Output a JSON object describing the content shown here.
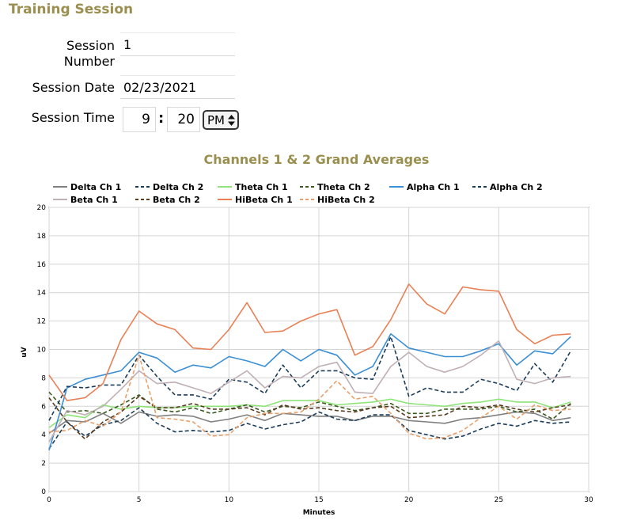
{
  "header": {
    "title": "Training Session"
  },
  "form": {
    "session_number": {
      "label_line1": "Session",
      "label_line2": "Number",
      "value": "1"
    },
    "session_date": {
      "label": "Session Date",
      "value": "02/23/2021"
    },
    "session_time": {
      "label": "Session Time",
      "hour": "9",
      "separator": ":",
      "minute": "20",
      "ampm": "PM"
    }
  },
  "colors": {
    "accent": "#9a8f4e"
  },
  "chart_data": {
    "type": "line",
    "title": "Channels 1 & 2 Grand Averages",
    "xlabel": "Minutes",
    "ylabel": "uV",
    "xlim": [
      0,
      30
    ],
    "ylim": [
      0,
      20
    ],
    "xticks": [
      "0",
      "5",
      "10",
      "15",
      "20",
      "25",
      "30"
    ],
    "yticks": [
      "0",
      "2",
      "4",
      "6",
      "8",
      "10",
      "12",
      "14",
      "16",
      "18",
      "20"
    ],
    "grid": true,
    "legend_position": "top",
    "x": [
      0,
      1,
      2,
      3,
      4,
      5,
      6,
      7,
      8,
      9,
      10,
      11,
      12,
      13,
      14,
      15,
      16,
      17,
      18,
      19,
      20,
      21,
      22,
      23,
      24,
      25,
      26,
      27,
      28,
      29
    ],
    "series": [
      {
        "name": "Delta Ch 1",
        "color": "#808080",
        "dash": false,
        "values": [
          4.1,
          5.0,
          4.9,
          5.5,
          4.8,
          5.6,
          5.3,
          5.4,
          5.3,
          4.9,
          5.1,
          5.4,
          5.0,
          5.5,
          5.4,
          5.3,
          5.3,
          5.0,
          5.3,
          5.3,
          5.0,
          4.9,
          4.8,
          5.1,
          5.2,
          5.4,
          5.6,
          5.5,
          5.0,
          5.2
        ]
      },
      {
        "name": "Delta Ch 2",
        "color": "#1c3d5a",
        "dash": true,
        "values": [
          3.0,
          4.9,
          3.9,
          4.7,
          5.0,
          5.9,
          4.8,
          4.2,
          4.3,
          4.2,
          4.3,
          4.8,
          4.4,
          4.7,
          4.9,
          5.6,
          5.1,
          5.0,
          5.4,
          5.4,
          4.3,
          4.0,
          3.7,
          3.9,
          4.4,
          4.8,
          4.6,
          5.0,
          4.8,
          4.9
        ]
      },
      {
        "name": "Theta Ch 1",
        "color": "#8fe47a",
        "dash": false,
        "values": [
          4.5,
          5.4,
          5.2,
          6.1,
          5.8,
          6.0,
          5.9,
          5.9,
          6.0,
          6.0,
          6.0,
          6.1,
          6.0,
          6.4,
          6.4,
          6.4,
          6.1,
          6.2,
          6.3,
          6.5,
          6.2,
          6.1,
          6.0,
          6.2,
          6.3,
          6.5,
          6.3,
          6.3,
          5.9,
          6.3
        ]
      },
      {
        "name": "Theta Ch 2",
        "color": "#3b5a1e",
        "dash": true,
        "values": [
          7.0,
          5.6,
          5.7,
          5.5,
          6.1,
          6.8,
          5.8,
          5.6,
          5.9,
          5.5,
          5.8,
          6.1,
          5.6,
          6.0,
          5.9,
          6.3,
          6.0,
          5.7,
          5.9,
          6.2,
          5.5,
          5.5,
          5.8,
          5.8,
          5.8,
          6.0,
          5.6,
          5.8,
          5.1,
          6.2
        ]
      },
      {
        "name": "Alpha Ch 1",
        "color": "#3b8fd4",
        "dash": false,
        "values": [
          2.9,
          7.3,
          7.9,
          8.2,
          8.5,
          9.8,
          9.4,
          8.4,
          8.9,
          8.7,
          9.5,
          9.2,
          8.8,
          10.0,
          9.2,
          10.0,
          9.6,
          8.2,
          8.8,
          11.1,
          10.1,
          9.8,
          9.5,
          9.5,
          9.9,
          10.4,
          8.9,
          9.9,
          9.7,
          10.9
        ]
      },
      {
        "name": "Alpha Ch 2",
        "color": "#1c3d5a",
        "dash": true,
        "values": [
          5.0,
          7.4,
          7.3,
          7.5,
          7.5,
          9.6,
          8.1,
          6.8,
          6.8,
          6.5,
          7.9,
          7.7,
          6.9,
          8.9,
          7.3,
          8.5,
          8.5,
          8.0,
          7.9,
          10.9,
          6.7,
          7.3,
          7.0,
          7.0,
          7.9,
          7.6,
          7.1,
          9.0,
          7.7,
          9.9
        ]
      },
      {
        "name": "Beta Ch 1",
        "color": "#c0b0b6",
        "dash": false,
        "values": [
          3.5,
          5.7,
          5.4,
          6.0,
          7.2,
          8.5,
          7.6,
          7.7,
          7.3,
          6.9,
          7.7,
          8.5,
          7.3,
          8.1,
          8.0,
          8.8,
          9.1,
          7.0,
          6.9,
          8.8,
          9.8,
          8.8,
          8.4,
          8.8,
          9.6,
          10.6,
          7.9,
          7.6,
          8.0,
          8.1
        ]
      },
      {
        "name": "Beta Ch 2",
        "color": "#5a3a1e",
        "dash": true,
        "values": [
          6.6,
          4.9,
          3.7,
          4.9,
          5.6,
          6.7,
          5.9,
          5.9,
          6.2,
          5.8,
          5.8,
          5.9,
          5.4,
          6.1,
          5.8,
          5.9,
          5.7,
          5.6,
          5.9,
          6.0,
          5.2,
          5.3,
          5.4,
          6.0,
          5.9,
          6.1,
          5.8,
          5.6,
          5.9,
          6.1
        ]
      },
      {
        "name": "HiBeta Ch 1",
        "color": "#e88055",
        "dash": false,
        "values": [
          8.2,
          6.4,
          6.6,
          7.6,
          10.7,
          12.7,
          11.8,
          11.4,
          10.1,
          10.0,
          11.4,
          13.3,
          11.2,
          11.3,
          12.0,
          12.5,
          12.8,
          9.6,
          10.2,
          12.1,
          14.6,
          13.2,
          12.5,
          14.4,
          14.2,
          14.1,
          11.4,
          10.4,
          11.0,
          11.1
        ]
      },
      {
        "name": "HiBeta Ch 2",
        "color": "#e8a06a",
        "dash": true,
        "values": [
          4.2,
          4.3,
          5.0,
          4.6,
          5.6,
          9.6,
          5.2,
          5.1,
          4.9,
          3.9,
          4.0,
          5.2,
          5.5,
          5.5,
          5.6,
          6.5,
          7.8,
          6.5,
          6.7,
          5.5,
          4.1,
          3.7,
          3.8,
          4.3,
          5.2,
          6.0,
          5.1,
          6.1,
          5.7,
          5.8
        ]
      }
    ]
  }
}
